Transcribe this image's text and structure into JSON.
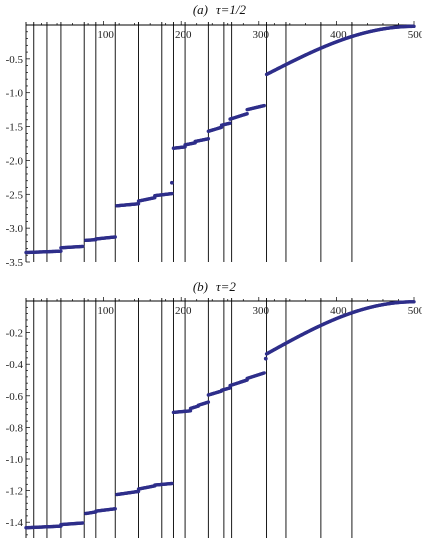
{
  "chart_data": [
    {
      "type": "scatter",
      "panel_label": "(a)",
      "title": "τ=1/2",
      "xlabel": "",
      "ylabel": "",
      "xlim": [
        0,
        500
      ],
      "ylim": [
        -3.5,
        0
      ],
      "x_ticks": [
        100,
        200,
        300,
        400,
        500
      ],
      "x_tick_labels": [
        "100",
        "200",
        "300",
        "400",
        "500"
      ],
      "y_ticks": [
        -0.5,
        -1.0,
        -1.5,
        -2.0,
        -2.5,
        -3.0,
        -3.5
      ],
      "y_tick_labels": [
        "-0.5",
        "-1.0",
        "-1.5",
        "-2.0",
        "-2.5",
        "-3.0",
        "-3.5"
      ],
      "vertical_lines": [
        10,
        27,
        45,
        75,
        90,
        115,
        145,
        175,
        190,
        205,
        235,
        255,
        265,
        310,
        335,
        380,
        420
      ],
      "point_color": "#2e2e8a",
      "line_color": "#000000",
      "segments": [
        {
          "x": [
            0,
            45
          ],
          "y": [
            -3.36,
            -3.34
          ]
        },
        {
          "x": [
            45,
            73
          ],
          "y": [
            -3.29,
            -3.27
          ]
        },
        {
          "x": [
            77,
            90
          ],
          "y": [
            -3.18,
            -3.17
          ]
        },
        {
          "x": [
            90,
            115
          ],
          "y": [
            -3.16,
            -3.13
          ]
        },
        {
          "x": [
            117,
            145
          ],
          "y": [
            -2.67,
            -2.64
          ]
        },
        {
          "x": [
            145,
            166
          ],
          "y": [
            -2.6,
            -2.55
          ]
        },
        {
          "x": [
            166,
            188
          ],
          "y": [
            -2.52,
            -2.49
          ]
        },
        {
          "x": [
            190,
            205
          ],
          "y": [
            -1.82,
            -1.8
          ]
        },
        {
          "x": [
            205,
            218
          ],
          "y": [
            -1.77,
            -1.74
          ]
        },
        {
          "x": [
            218,
            235
          ],
          "y": [
            -1.72,
            -1.68
          ]
        },
        {
          "x": [
            235,
            252
          ],
          "y": [
            -1.57,
            -1.51
          ]
        },
        {
          "x": [
            252,
            263
          ],
          "y": [
            -1.48,
            -1.45
          ]
        },
        {
          "x": [
            263,
            285
          ],
          "y": [
            -1.39,
            -1.31
          ]
        },
        {
          "x": [
            285,
            307
          ],
          "y": [
            -1.25,
            -1.19
          ]
        },
        {
          "x": [
            310,
            500
          ],
          "y": [
            -0.73,
            -0.02
          ],
          "shape": "s-curve"
        }
      ],
      "isolated_points": [
        {
          "x": 188,
          "y": -2.33
        }
      ]
    },
    {
      "type": "scatter",
      "panel_label": "(b)",
      "title": "τ=2",
      "xlabel": "",
      "ylabel": "",
      "xlim": [
        0,
        500
      ],
      "ylim": [
        -1.5,
        0
      ],
      "x_ticks": [
        100,
        200,
        300,
        400,
        500
      ],
      "x_tick_labels": [
        "100",
        "200",
        "300",
        "400",
        "500"
      ],
      "y_ticks": [
        -0.2,
        -0.4,
        -0.6,
        -0.8,
        -1.0,
        -1.2,
        -1.4
      ],
      "y_tick_labels": [
        "-0.2",
        "-0.4",
        "-0.6",
        "-0.8",
        "-1.0",
        "-1.2",
        "-1.4"
      ],
      "vertical_lines": [
        10,
        27,
        45,
        75,
        90,
        115,
        145,
        175,
        190,
        205,
        235,
        255,
        265,
        310,
        335,
        380,
        420
      ],
      "point_color": "#2e2e8a",
      "line_color": "#000000",
      "segments": [
        {
          "x": [
            0,
            45
          ],
          "y": [
            -1.435,
            -1.425
          ]
        },
        {
          "x": [
            45,
            73
          ],
          "y": [
            -1.415,
            -1.405
          ]
        },
        {
          "x": [
            77,
            90
          ],
          "y": [
            -1.345,
            -1.335
          ]
        },
        {
          "x": [
            90,
            115
          ],
          "y": [
            -1.33,
            -1.315
          ]
        },
        {
          "x": [
            117,
            145
          ],
          "y": [
            -1.225,
            -1.205
          ]
        },
        {
          "x": [
            145,
            166
          ],
          "y": [
            -1.19,
            -1.17
          ]
        },
        {
          "x": [
            166,
            188
          ],
          "y": [
            -1.165,
            -1.155
          ]
        },
        {
          "x": [
            190,
            212
          ],
          "y": [
            -0.705,
            -0.695
          ]
        },
        {
          "x": [
            212,
            222
          ],
          "y": [
            -0.68,
            -0.665
          ]
        },
        {
          "x": [
            222,
            235
          ],
          "y": [
            -0.66,
            -0.64
          ]
        },
        {
          "x": [
            235,
            252
          ],
          "y": [
            -0.595,
            -0.57
          ]
        },
        {
          "x": [
            252,
            263
          ],
          "y": [
            -0.565,
            -0.55
          ]
        },
        {
          "x": [
            263,
            285
          ],
          "y": [
            -0.535,
            -0.5
          ]
        },
        {
          "x": [
            285,
            307
          ],
          "y": [
            -0.49,
            -0.455
          ]
        },
        {
          "x": [
            310,
            500
          ],
          "y": [
            -0.335,
            -0.005
          ],
          "shape": "s-curve"
        }
      ],
      "isolated_points": [
        {
          "x": 309,
          "y": -0.365
        }
      ]
    }
  ]
}
